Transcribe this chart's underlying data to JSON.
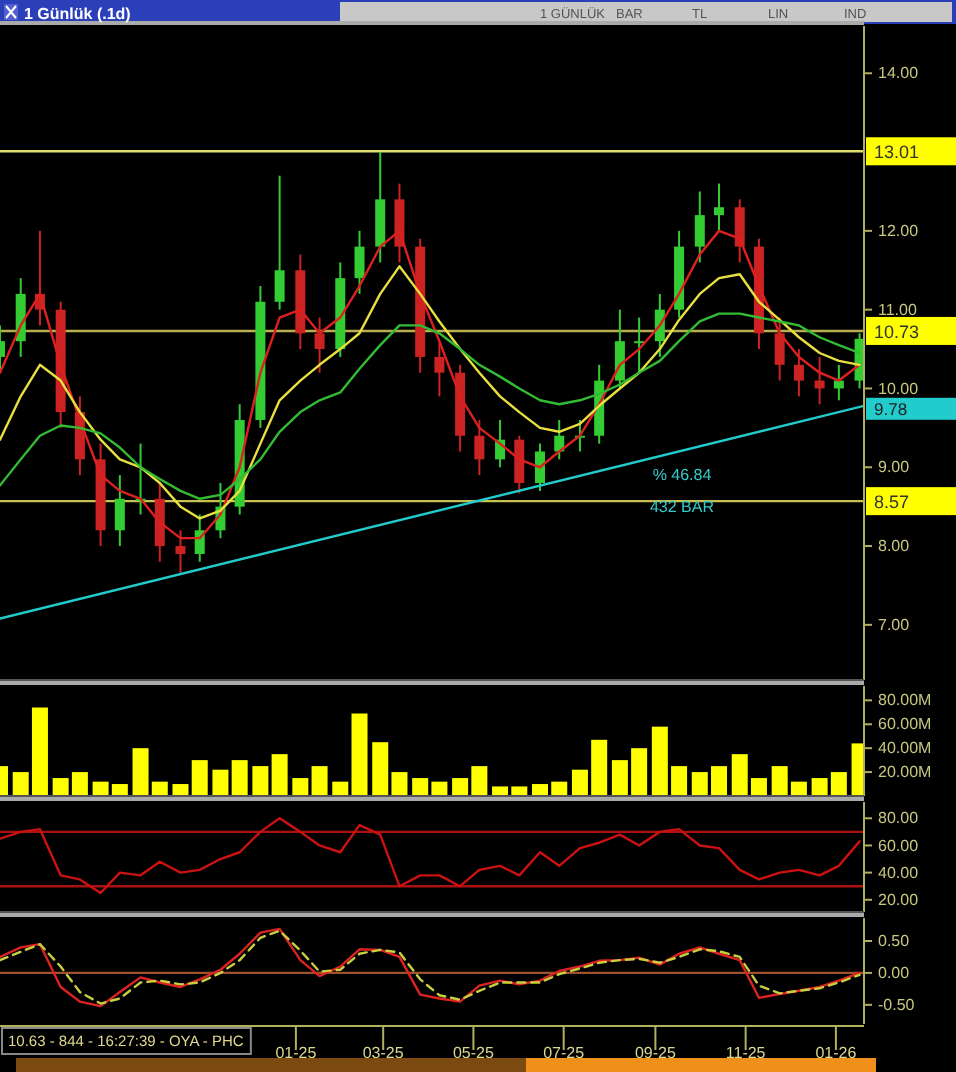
{
  "chart_data": [
    {
      "type": "candlestick",
      "title": "1 Günlük (.1d)",
      "x": [
        "2024-06-15",
        "2024-06-29",
        "2024-07-12",
        "2024-07-26",
        "2024-08-08",
        "2024-08-22",
        "2024-09-04",
        "2024-09-18",
        "2024-10-01",
        "2024-10-15",
        "2024-10-28",
        "2024-11-11",
        "2024-11-24",
        "2024-12-08",
        "2024-12-21",
        "2025-01-04",
        "2025-01-17",
        "2025-01-31",
        "2025-02-13",
        "2025-02-27",
        "2025-03-12",
        "2025-03-26",
        "2025-04-08",
        "2025-04-22",
        "2025-05-05",
        "2025-05-19",
        "2025-06-01",
        "2025-06-15",
        "2025-06-28",
        "2025-07-12",
        "2025-07-25",
        "2025-08-08",
        "2025-08-21",
        "2025-09-04",
        "2025-09-17",
        "2025-10-01",
        "2025-10-14",
        "2025-10-28",
        "2025-11-10",
        "2025-11-24",
        "2025-12-07",
        "2025-12-21",
        "2026-01-03",
        "2026-01-17"
      ],
      "ohlc": [
        [
          10.4,
          10.8,
          10.2,
          10.6
        ],
        [
          10.6,
          11.4,
          10.4,
          11.2
        ],
        [
          11.2,
          12.0,
          10.8,
          11.0
        ],
        [
          11.0,
          11.1,
          9.5,
          9.7
        ],
        [
          9.7,
          9.9,
          8.9,
          9.1
        ],
        [
          9.1,
          9.3,
          8.0,
          8.2
        ],
        [
          8.2,
          8.9,
          8.0,
          8.6
        ],
        [
          8.6,
          9.3,
          8.4,
          8.6
        ],
        [
          8.6,
          8.8,
          7.8,
          8.0
        ],
        [
          8.0,
          8.2,
          7.66,
          7.9
        ],
        [
          7.9,
          8.4,
          7.8,
          8.2
        ],
        [
          8.2,
          8.8,
          8.1,
          8.5
        ],
        [
          8.5,
          9.8,
          8.4,
          9.6
        ],
        [
          9.6,
          11.3,
          9.5,
          11.1
        ],
        [
          11.1,
          12.7,
          11.0,
          11.5
        ],
        [
          11.5,
          11.7,
          10.5,
          10.7
        ],
        [
          10.7,
          10.9,
          10.2,
          10.5
        ],
        [
          10.5,
          11.6,
          10.4,
          11.4
        ],
        [
          11.4,
          12.0,
          11.2,
          11.8
        ],
        [
          11.8,
          13.0,
          11.6,
          12.4
        ],
        [
          12.4,
          12.6,
          11.6,
          11.8
        ],
        [
          11.8,
          11.9,
          10.2,
          10.4
        ],
        [
          10.4,
          10.6,
          9.9,
          10.2
        ],
        [
          10.2,
          10.3,
          9.2,
          9.4
        ],
        [
          9.4,
          9.6,
          8.9,
          9.1
        ],
        [
          9.1,
          9.6,
          9.0,
          9.35
        ],
        [
          9.35,
          9.4,
          8.67,
          8.8
        ],
        [
          8.8,
          9.3,
          8.7,
          9.2
        ],
        [
          9.2,
          9.6,
          9.1,
          9.4
        ],
        [
          9.4,
          9.6,
          9.2,
          9.4
        ],
        [
          9.4,
          10.3,
          9.3,
          10.1
        ],
        [
          10.1,
          11.0,
          10.0,
          10.6
        ],
        [
          10.6,
          10.9,
          10.2,
          10.6
        ],
        [
          10.6,
          11.2,
          10.4,
          11.0
        ],
        [
          11.0,
          12.0,
          10.9,
          11.8
        ],
        [
          11.8,
          12.5,
          11.6,
          12.2
        ],
        [
          12.2,
          12.6,
          12.0,
          12.3
        ],
        [
          12.3,
          12.4,
          11.6,
          11.8
        ],
        [
          11.8,
          11.9,
          10.5,
          10.7
        ],
        [
          10.7,
          10.9,
          10.1,
          10.3
        ],
        [
          10.3,
          10.5,
          9.9,
          10.1
        ],
        [
          10.1,
          10.4,
          9.8,
          10.0
        ],
        [
          10.0,
          10.3,
          9.85,
          10.1
        ],
        [
          10.1,
          10.7,
          10.0,
          10.63
        ]
      ],
      "colors": [
        "#33cc33",
        "#33cc33",
        "#cc2222",
        "#cc2222",
        "#cc2222",
        "#cc2222",
        "#33cc33",
        "#33cc33",
        "#cc2222",
        "#cc2222",
        "#33cc33",
        "#33cc33",
        "#33cc33",
        "#33cc33",
        "#33cc33",
        "#cc2222",
        "#cc2222",
        "#33cc33",
        "#33cc33",
        "#33cc33",
        "#cc2222",
        "#cc2222",
        "#cc2222",
        "#cc2222",
        "#cc2222",
        "#33cc33",
        "#cc2222",
        "#33cc33",
        "#33cc33",
        "#33cc33",
        "#33cc33",
        "#33cc33",
        "#33cc33",
        "#33cc33",
        "#33cc33",
        "#33cc33",
        "#33cc33",
        "#cc2222",
        "#cc2222",
        "#cc2222",
        "#cc2222",
        "#cc2222",
        "#33cc33",
        "#33cc33"
      ],
      "series": [
        {
          "type": "line",
          "color": "#dd2020",
          "values": [
            10.2,
            10.8,
            11.2,
            10.3,
            9.6,
            8.9,
            8.7,
            8.6,
            8.3,
            8.1,
            8.1,
            8.4,
            9.0,
            10.2,
            10.9,
            11.0,
            10.7,
            10.9,
            11.3,
            11.8,
            12.0,
            11.2,
            10.6,
            9.9,
            9.5,
            9.3,
            9.1,
            9.0,
            9.2,
            9.4,
            9.8,
            10.3,
            10.5,
            10.8,
            11.2,
            11.7,
            12.0,
            11.9,
            11.3,
            10.7,
            10.4,
            10.2,
            10.1,
            10.3
          ]
        },
        {
          "type": "line",
          "color": "#e8e040",
          "values": [
            9.35,
            9.9,
            10.3,
            10.1,
            9.7,
            9.35,
            9.1,
            9.0,
            8.8,
            8.5,
            8.35,
            8.45,
            8.7,
            9.3,
            9.85,
            10.1,
            10.3,
            10.5,
            10.7,
            11.2,
            11.55,
            11.2,
            10.85,
            10.5,
            10.2,
            9.9,
            9.7,
            9.5,
            9.45,
            9.55,
            9.78,
            10.0,
            10.2,
            10.5,
            10.87,
            11.2,
            11.4,
            11.45,
            11.1,
            10.87,
            10.65,
            10.45,
            10.35,
            10.3
          ]
        },
        {
          "type": "line",
          "color": "#33bb33",
          "values": [
            8.77,
            9.1,
            9.4,
            9.53,
            9.5,
            9.43,
            9.25,
            9.0,
            8.85,
            8.7,
            8.6,
            8.65,
            8.85,
            9.1,
            9.45,
            9.7,
            9.85,
            9.95,
            10.25,
            10.55,
            10.8,
            10.8,
            10.7,
            10.5,
            10.3,
            10.15,
            10.0,
            9.85,
            9.8,
            9.85,
            9.93,
            10.05,
            10.2,
            10.35,
            10.6,
            10.85,
            10.95,
            10.95,
            10.9,
            10.85,
            10.8,
            10.65,
            10.55,
            10.45
          ]
        },
        {
          "type": "line",
          "color": "#22cccc",
          "x": [
            "2024-06-15",
            "2026-01-20"
          ],
          "values": [
            7.08,
            9.78
          ],
          "value_labels": [
            null,
            "9.78"
          ]
        }
      ],
      "xlim": [
        "2024-06-15",
        "2026-01-20"
      ],
      "ylim": [
        6.3,
        14.6
      ],
      "yticks": [
        {
          "value": 7,
          "label": "7.00"
        },
        {
          "value": 8,
          "label": "8.00"
        },
        {
          "value": 9,
          "label": "9.00"
        },
        {
          "value": 10,
          "label": "10.00"
        },
        {
          "value": 11,
          "label": "11.00"
        },
        {
          "value": 12,
          "label": "12.00"
        },
        {
          "value": 14,
          "label": "14.00"
        }
      ],
      "ref_lines": [
        {
          "axis": "y",
          "value": 13.01,
          "label": "13.01",
          "color": "#e0e070"
        },
        {
          "axis": "y",
          "value": 10.73,
          "label": "10.73",
          "color": "#b8b050"
        },
        {
          "axis": "y",
          "value": 8.57,
          "label": "8.57",
          "color": "#c8c050"
        }
      ],
      "annotations": [
        "% 46.84",
        "432 BAR",
        "1 GÜNLÜK",
        "BAR",
        "TL",
        "LIN",
        "IND"
      ],
      "tick_labels": "y"
    },
    {
      "type": "bar",
      "x": [
        "2024-06-15",
        "2024-06-29",
        "2024-07-12",
        "2024-07-26",
        "2024-08-08",
        "2024-08-22",
        "2024-09-04",
        "2024-09-18",
        "2024-10-01",
        "2024-10-15",
        "2024-10-28",
        "2024-11-11",
        "2024-11-24",
        "2024-12-08",
        "2024-12-21",
        "2025-01-04",
        "2025-01-17",
        "2025-01-31",
        "2025-02-13",
        "2025-02-27",
        "2025-03-12",
        "2025-03-26",
        "2025-04-08",
        "2025-04-22",
        "2025-05-05",
        "2025-05-19",
        "2025-06-01",
        "2025-06-15",
        "2025-06-28",
        "2025-07-12",
        "2025-07-25",
        "2025-08-08",
        "2025-08-21",
        "2025-09-04",
        "2025-09-17",
        "2025-10-01",
        "2025-10-14",
        "2025-10-28",
        "2025-11-10",
        "2025-11-24",
        "2025-12-07",
        "2025-12-21",
        "2026-01-03",
        "2026-01-17"
      ],
      "values": [
        25,
        20,
        74,
        15,
        20,
        12,
        10,
        40,
        12,
        10,
        30,
        22,
        30,
        25,
        35,
        15,
        25,
        12,
        69,
        45,
        20,
        15,
        12,
        15,
        25,
        8,
        8,
        10,
        12,
        22,
        47,
        30,
        40,
        58,
        25,
        20,
        25,
        35,
        15,
        25,
        12,
        15,
        20,
        44
      ],
      "color": "#ffff00",
      "xlim": [
        "2024-06-15",
        "2026-01-20"
      ],
      "ylim": [
        0,
        92
      ],
      "yticks": [
        {
          "value": 20,
          "label": "20.00M"
        },
        {
          "value": 40,
          "label": "40.00M"
        },
        {
          "value": 60,
          "label": "60.00M"
        },
        {
          "value": 80,
          "label": "80.00M"
        }
      ],
      "tick_labels": "y"
    },
    {
      "type": "line",
      "x": [
        "2024-06-15",
        "2024-06-29",
        "2024-07-12",
        "2024-07-26",
        "2024-08-08",
        "2024-08-22",
        "2024-09-04",
        "2024-09-18",
        "2024-10-01",
        "2024-10-15",
        "2024-10-28",
        "2024-11-11",
        "2024-11-24",
        "2024-12-08",
        "2024-12-21",
        "2025-01-04",
        "2025-01-17",
        "2025-01-31",
        "2025-02-13",
        "2025-02-27",
        "2025-03-12",
        "2025-03-26",
        "2025-04-08",
        "2025-04-22",
        "2025-05-05",
        "2025-05-19",
        "2025-06-01",
        "2025-06-15",
        "2025-06-28",
        "2025-07-12",
        "2025-07-25",
        "2025-08-08",
        "2025-08-21",
        "2025-09-04",
        "2025-09-17",
        "2025-10-01",
        "2025-10-14",
        "2025-10-28",
        "2025-11-10",
        "2025-11-24",
        "2025-12-07",
        "2025-12-21",
        "2026-01-03",
        "2026-01-17"
      ],
      "series": [
        {
          "color": "#cc1111",
          "values": [
            65,
            70,
            72,
            38,
            35,
            25,
            40,
            38,
            48,
            40,
            42,
            50,
            55,
            70,
            80,
            70,
            60,
            55,
            75,
            68,
            30,
            38,
            38,
            30,
            42,
            45,
            38,
            55,
            45,
            58,
            62,
            68,
            60,
            70,
            72,
            60,
            58,
            42,
            35,
            40,
            42,
            38,
            45,
            63
          ]
        }
      ],
      "xlim": [
        "2024-06-15",
        "2026-01-20"
      ],
      "ylim": [
        11,
        92
      ],
      "yticks": [
        {
          "value": 20,
          "label": "20.00"
        },
        {
          "value": 40,
          "label": "40.00"
        },
        {
          "value": 60,
          "label": "60.00"
        },
        {
          "value": 80,
          "label": "80.00"
        }
      ],
      "ref_lines": [
        {
          "axis": "y",
          "value": 70,
          "color": "#aa1111"
        },
        {
          "axis": "y",
          "value": 30,
          "color": "#aa1111"
        }
      ],
      "tick_labels": "y"
    },
    {
      "type": "line",
      "x": [
        "2024-06-15",
        "2024-06-29",
        "2024-07-12",
        "2024-07-26",
        "2024-08-08",
        "2024-08-22",
        "2024-09-04",
        "2024-09-18",
        "2024-10-01",
        "2024-10-15",
        "2024-10-28",
        "2024-11-11",
        "2024-11-24",
        "2024-12-08",
        "2024-12-21",
        "2025-01-04",
        "2025-01-17",
        "2025-01-31",
        "2025-02-13",
        "2025-02-27",
        "2025-03-12",
        "2025-03-26",
        "2025-04-08",
        "2025-04-22",
        "2025-05-05",
        "2025-05-19",
        "2025-06-01",
        "2025-06-15",
        "2025-06-28",
        "2025-07-12",
        "2025-07-25",
        "2025-08-08",
        "2025-08-21",
        "2025-09-04",
        "2025-09-17",
        "2025-10-01",
        "2025-10-14",
        "2025-10-28",
        "2025-11-10",
        "2025-11-24",
        "2025-12-07",
        "2025-12-21",
        "2026-01-03",
        "2026-01-17"
      ],
      "series": [
        {
          "color": "#dd2222",
          "values": [
            0.25,
            0.4,
            0.45,
            -0.22,
            -0.45,
            -0.52,
            -0.3,
            -0.07,
            -0.15,
            -0.22,
            -0.1,
            0.05,
            0.3,
            0.63,
            0.69,
            0.2,
            -0.05,
            0.1,
            0.37,
            0.36,
            0.25,
            -0.34,
            -0.4,
            -0.45,
            -0.2,
            -0.12,
            -0.18,
            -0.12,
            0.03,
            0.1,
            0.19,
            0.2,
            0.24,
            0.13,
            0.3,
            0.4,
            0.3,
            0.2,
            -0.39,
            -0.33,
            -0.28,
            -0.22,
            -0.12,
            0
          ]
        },
        {
          "color": "#c8d040",
          "line_style": "dashed",
          "values": [
            0.2,
            0.33,
            0.45,
            0.1,
            -0.3,
            -0.48,
            -0.4,
            -0.15,
            -0.12,
            -0.18,
            -0.15,
            0.0,
            0.2,
            0.55,
            0.66,
            0.35,
            0.02,
            0.05,
            0.3,
            0.36,
            0.32,
            -0.1,
            -0.35,
            -0.42,
            -0.28,
            -0.15,
            -0.15,
            -0.15,
            -0.02,
            0.07,
            0.16,
            0.2,
            0.22,
            0.16,
            0.25,
            0.37,
            0.34,
            0.25,
            -0.2,
            -0.32,
            -0.28,
            -0.24,
            -0.15,
            -0.03
          ]
        }
      ],
      "xlim": [
        "2024-06-15",
        "2026-01-20"
      ],
      "xticks": [
        {
          "value": "2025-01-01",
          "label": "01-25"
        },
        {
          "value": "2025-03-01",
          "label": "03-25"
        },
        {
          "value": "2025-05-01",
          "label": "05-25"
        },
        {
          "value": "2025-07-01",
          "label": "07-25"
        },
        {
          "value": "2025-09-01",
          "label": "09-25"
        },
        {
          "value": "2025-11-01",
          "label": "11-25"
        },
        {
          "value": "2026-01-01",
          "label": "01-26"
        }
      ],
      "ylim": [
        -0.8,
        0.86
      ],
      "yticks": [
        {
          "value": -0.5,
          "label": "-0.50"
        },
        {
          "value": 0,
          "label": "0.00"
        },
        {
          "value": 0.5,
          "label": "0.50"
        }
      ],
      "ref_lines": [
        {
          "axis": "y",
          "value": 0,
          "color": "#a0522d"
        }
      ],
      "annotations": [
        "10.63 - 844 - 16:27:39 - OYA - PHC"
      ]
    }
  ]
}
